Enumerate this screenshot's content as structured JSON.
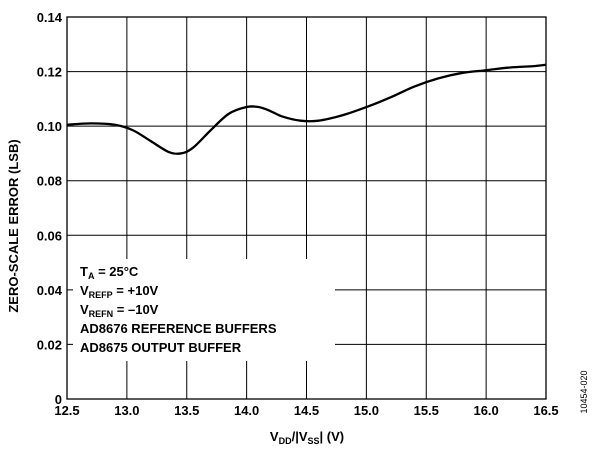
{
  "chart_data": {
    "type": "line",
    "xlabel": {
      "main": "V",
      "sub1": "DD",
      "mid": "/|V",
      "sub2": "SS",
      "end": "| (V)"
    },
    "ylabel": "ZERO-SCALE ERROR (LSB)",
    "xlim": [
      12.5,
      16.5
    ],
    "ylim": [
      0,
      0.14
    ],
    "x_ticks": [
      "12.5",
      "13.0",
      "13.5",
      "14.0",
      "14.5",
      "15.0",
      "15.5",
      "16.0",
      "16.5"
    ],
    "y_ticks": [
      "0",
      "0.02",
      "0.04",
      "0.06",
      "0.08",
      "0.10",
      "0.12",
      "0.14"
    ],
    "grid": true,
    "series": [
      {
        "x": [
          12.5,
          12.7,
          12.9,
          13.05,
          13.2,
          13.35,
          13.45,
          13.55,
          13.7,
          13.85,
          14.0,
          14.1,
          14.2,
          14.3,
          14.45,
          14.6,
          14.8,
          15.0,
          15.2,
          15.4,
          15.6,
          15.8,
          16.0,
          16.2,
          16.4,
          16.5
        ],
        "y": [
          0.1005,
          0.101,
          0.1005,
          0.0985,
          0.0945,
          0.0905,
          0.09,
          0.092,
          0.0985,
          0.1045,
          0.107,
          0.107,
          0.1055,
          0.1035,
          0.102,
          0.102,
          0.104,
          0.107,
          0.1105,
          0.1145,
          0.1175,
          0.1195,
          0.1205,
          0.1215,
          0.122,
          0.1225
        ]
      }
    ],
    "annotations": [
      {
        "main": "T",
        "sub": "A",
        "rest": " = 25°C"
      },
      {
        "main": "V",
        "sub": "REFP",
        "rest": " = +10V"
      },
      {
        "main": "V",
        "sub": "REFN",
        "rest": " = –10V"
      },
      {
        "main": "AD8676 REFERENCE BUFFERS",
        "sub": "",
        "rest": ""
      },
      {
        "main": "AD8675 OUTPUT BUFFER",
        "sub": "",
        "rest": ""
      }
    ],
    "figure_id": "10454-020"
  }
}
